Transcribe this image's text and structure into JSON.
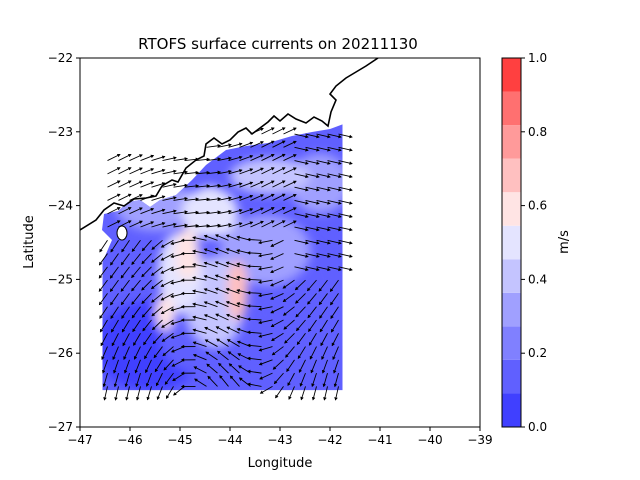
{
  "chart_data": {
    "type": "heatmap",
    "title": "RTOFS surface currents on 20211130",
    "xlabel": "Longitude",
    "ylabel": "Latitude",
    "xlim": [
      -47,
      -39
    ],
    "ylim": [
      -27,
      -22
    ],
    "x_ticks": [
      -47,
      -46,
      -45,
      -44,
      -43,
      -42,
      -41,
      -40,
      -39
    ],
    "x_tick_labels": [
      "−47",
      "−46",
      "−45",
      "−44",
      "−43",
      "−42",
      "−41",
      "−40",
      "−39"
    ],
    "y_ticks": [
      -27,
      -26,
      -25,
      -24,
      -23,
      -22
    ],
    "y_tick_labels": [
      "−27",
      "−26",
      "−25",
      "−24",
      "−23",
      "−22"
    ],
    "colorbar": {
      "label": "m/s",
      "range": [
        0.0,
        1.0
      ],
      "ticks": [
        0.0,
        0.2,
        0.4,
        0.6,
        0.8,
        1.0
      ],
      "tick_labels": [
        "0.0",
        "0.2",
        "0.4",
        "0.6",
        "0.8",
        "1.0"
      ],
      "levels": [
        0.0,
        0.1,
        0.2,
        0.3,
        0.4,
        0.5,
        0.6,
        0.7,
        0.8,
        0.9,
        1.0
      ],
      "colors": [
        "#4040ff",
        "#6060ff",
        "#8080ff",
        "#a0a0ff",
        "#c4c4ff",
        "#e4e4ff",
        "#ffe4e4",
        "#ffc0c0",
        "#ff9a9a",
        "#ff7070",
        "#ff4040"
      ]
    },
    "data_extent": {
      "lon": [
        -46.55,
        -41.75
      ],
      "lat": [
        -26.5,
        -22.9
      ]
    },
    "max_speed_regions": [
      {
        "lon": -44.85,
        "lat": -24.65,
        "speed": 0.62
      },
      {
        "lon": -43.85,
        "lat": -25.15,
        "speed": 0.72
      },
      {
        "lon": -45.3,
        "lat": -25.45,
        "speed": 0.6
      },
      {
        "lon": -44.4,
        "lat": -23.9,
        "speed": 0.55
      }
    ],
    "colors": {
      "coastline": "#000000",
      "vectors": "#000000",
      "background": "#ffffff"
    }
  }
}
